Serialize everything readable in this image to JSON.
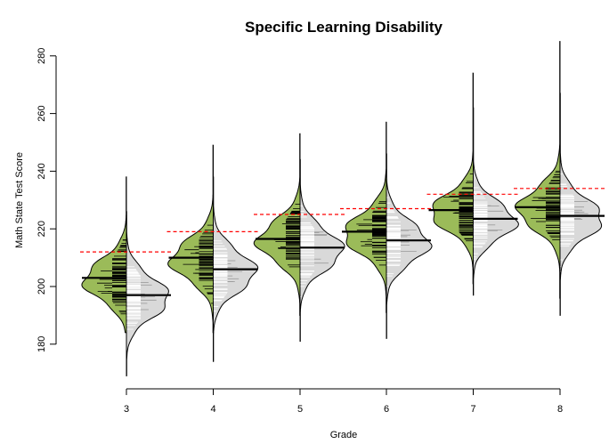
{
  "chart_data": {
    "type": "split-violin (beanplot)",
    "title": "Specific Learning Disability",
    "xlabel": "Grade",
    "ylabel": "Math State Test Score",
    "categories": [
      "3",
      "4",
      "5",
      "6",
      "7",
      "8"
    ],
    "y_ticks": [
      "180",
      "200",
      "220",
      "240",
      "260",
      "280"
    ],
    "ylim": [
      175,
      285
    ],
    "colors": {
      "left_fill": "#9bbb59",
      "right_fill": "#d9d9d9",
      "reference": "#ff0000",
      "outline": "#000000"
    },
    "series": [
      {
        "side": "left",
        "fill": "green",
        "means": [
          203,
          210,
          216.5,
          219,
          226.5,
          227.5
        ],
        "spread_sd": [
          7,
          7,
          7,
          7,
          6.5,
          7
        ],
        "range": [
          [
            184,
            238
          ],
          [
            184,
            249
          ],
          [
            190,
            253
          ],
          [
            191,
            257
          ],
          [
            201,
            274
          ],
          [
            196,
            285
          ]
        ]
      },
      {
        "side": "right",
        "fill": "gray",
        "means": [
          197,
          206,
          213.5,
          216,
          223.5,
          224.5
        ],
        "spread_sd": [
          7,
          7,
          7,
          7,
          6.5,
          7
        ],
        "range": [
          [
            169,
            226
          ],
          [
            174,
            238
          ],
          [
            181,
            244
          ],
          [
            182,
            246
          ],
          [
            197,
            262
          ],
          [
            190,
            267
          ]
        ]
      }
    ],
    "reference_lines": [
      212,
      219,
      225,
      227,
      232,
      234
    ],
    "grid": false,
    "legend": "none"
  }
}
